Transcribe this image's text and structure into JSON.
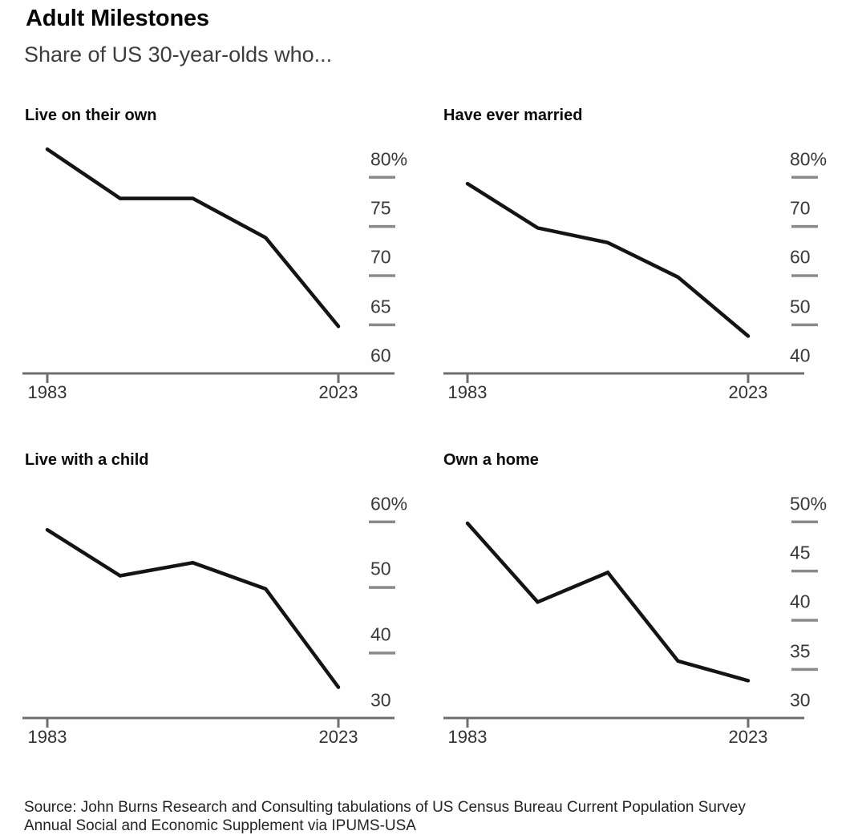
{
  "header": {
    "title": "Adult Milestones",
    "subtitle": "Share of US 30-year-olds who..."
  },
  "source": {
    "line1": "Source: John Burns Research and Consulting tabulations of US Census Bureau Current Population Survey",
    "line2": "Annual Social and Economic Supplement via IPUMS-USA"
  },
  "colors": {
    "line": "#141414",
    "axis": "#6e6e6e",
    "tick_dash": "#8a8a8a",
    "y_label_text": "#3a3a3a",
    "x_label_text": "#333333"
  },
  "chart_data": [
    {
      "type": "line",
      "title": "Live on their own",
      "x": [
        1983,
        1993,
        2003,
        2013,
        2023
      ],
      "x_tick_labels": [
        "1983",
        "2023"
      ],
      "values": [
        81,
        76,
        76,
        72,
        63
      ],
      "yticks": [
        {
          "label": "80%",
          "value": 80
        },
        {
          "label": "75",
          "value": 75
        },
        {
          "label": "70",
          "value": 70
        },
        {
          "label": "65",
          "value": 65
        },
        {
          "label": "60",
          "value": 60
        }
      ],
      "ylim": [
        58,
        82
      ],
      "grid": false,
      "legend": null
    },
    {
      "type": "line",
      "title": "Have ever married",
      "x": [
        1983,
        1993,
        2003,
        2013,
        2023
      ],
      "x_tick_labels": [
        "1983",
        "2023"
      ],
      "values": [
        75,
        66,
        63,
        56,
        44
      ],
      "yticks": [
        {
          "label": "80%",
          "value": 80
        },
        {
          "label": "70",
          "value": 70
        },
        {
          "label": "60",
          "value": 60
        },
        {
          "label": "50",
          "value": 50
        },
        {
          "label": "40",
          "value": 40
        }
      ],
      "ylim": [
        36,
        81
      ],
      "grid": false,
      "legend": null
    },
    {
      "type": "line",
      "title": "Live with a child",
      "x": [
        1983,
        1993,
        2003,
        2013,
        2023
      ],
      "x_tick_labels": [
        "1983",
        "2023"
      ],
      "values": [
        56,
        49,
        51,
        47,
        32
      ],
      "yticks": [
        {
          "label": "60%",
          "value": 60
        },
        {
          "label": "50",
          "value": 50
        },
        {
          "label": "40",
          "value": 40
        },
        {
          "label": "30",
          "value": 30
        }
      ],
      "ylim": [
        27,
        61
      ],
      "grid": false,
      "legend": null
    },
    {
      "type": "line",
      "title": "Own a home",
      "x": [
        1983,
        1993,
        2003,
        2013,
        2023
      ],
      "x_tick_labels": [
        "1983",
        "2023"
      ],
      "values": [
        48,
        40,
        43,
        34,
        32
      ],
      "yticks": [
        {
          "label": "50%",
          "value": 50
        },
        {
          "label": "45",
          "value": 45
        },
        {
          "label": "40",
          "value": 40
        },
        {
          "label": "35",
          "value": 35
        },
        {
          "label": "30",
          "value": 30
        }
      ],
      "ylim": [
        28,
        51
      ],
      "grid": false,
      "legend": null
    }
  ]
}
